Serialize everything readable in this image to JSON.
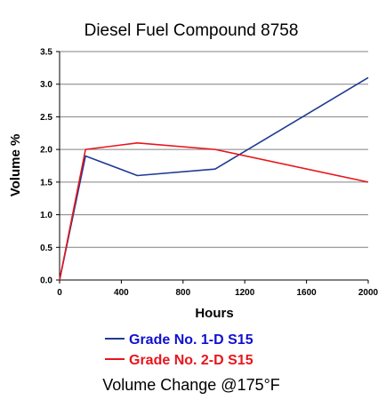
{
  "chart_data": {
    "type": "line",
    "title": "Diesel Fuel Compound 8758",
    "xlabel": "Hours",
    "ylabel": "Volume %",
    "caption": "Volume Change @175°F",
    "xlim": [
      0,
      2000
    ],
    "ylim": [
      0,
      3.5
    ],
    "xticks": [
      0,
      400,
      800,
      1200,
      1600,
      2000
    ],
    "xtick_labels": [
      "0",
      "400",
      "800",
      "1200",
      "1600",
      "2000"
    ],
    "yticks": [
      0,
      0.5,
      1.0,
      1.5,
      2.0,
      2.5,
      3.0,
      3.5
    ],
    "ytick_labels": [
      "0.0",
      "0.5",
      "1.0",
      "1.5",
      "2.0",
      "2.5",
      "3.0",
      "3.5"
    ],
    "grid": "horizontal",
    "legend_position": "bottom",
    "series": [
      {
        "name": "Grade No. 1-D S15",
        "color": "#1f3a93",
        "points": [
          [
            0,
            0.0
          ],
          [
            168,
            1.9
          ],
          [
            504,
            1.6
          ],
          [
            1008,
            1.7
          ],
          [
            2000,
            3.1
          ]
        ]
      },
      {
        "name": "Grade No. 2-D S15",
        "color": "#e8151b",
        "points": [
          [
            0,
            0.0
          ],
          [
            168,
            2.0
          ],
          [
            504,
            2.1
          ],
          [
            1008,
            2.0
          ],
          [
            2000,
            1.5
          ]
        ]
      }
    ]
  }
}
